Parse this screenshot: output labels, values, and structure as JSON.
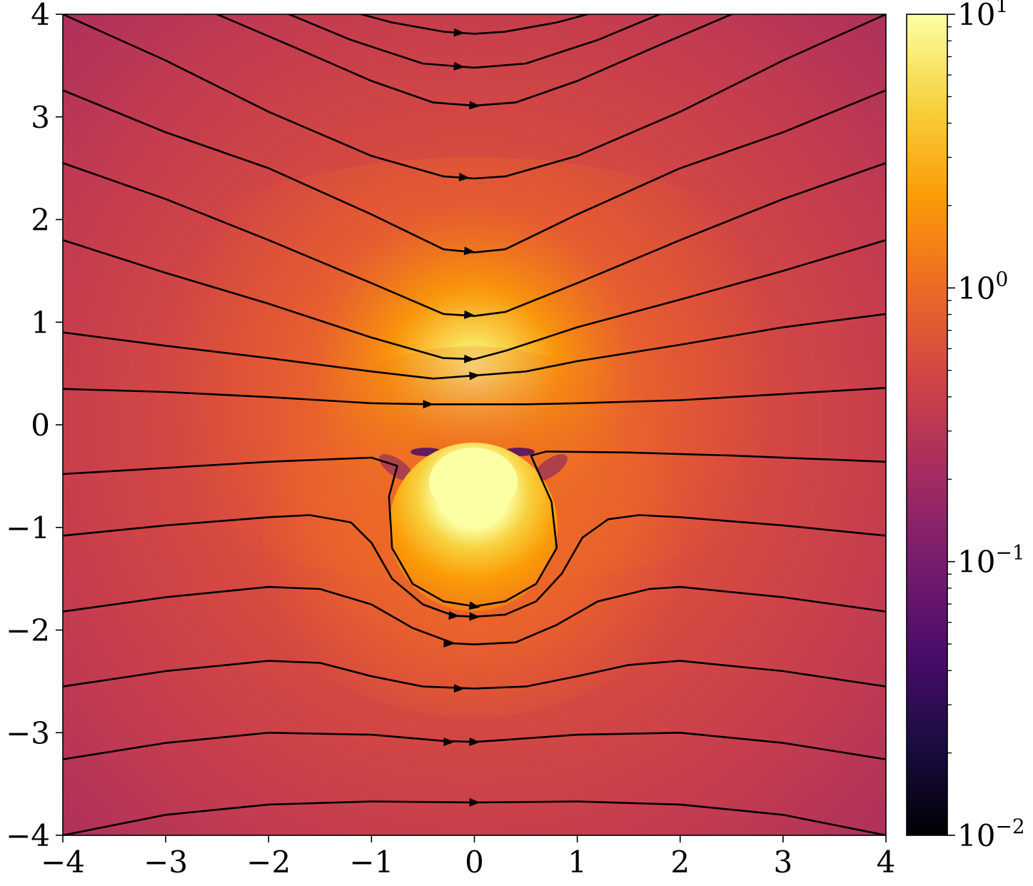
{
  "chart_data": {
    "type": "streamplot",
    "title": "",
    "xlabel": "",
    "ylabel": "",
    "xlim": [
      -4,
      4
    ],
    "ylim": [
      -4,
      4
    ],
    "x_ticks": [
      -4,
      -3,
      -2,
      -1,
      0,
      1,
      2,
      3,
      4
    ],
    "y_ticks": [
      -4,
      -3,
      -2,
      -1,
      0,
      1,
      2,
      3,
      4
    ],
    "x_tick_labels": [
      "−4",
      "−3",
      "−2",
      "−1",
      "0",
      "1",
      "2",
      "3",
      "4"
    ],
    "y_tick_labels": [
      "−4",
      "−3",
      "−2",
      "−1",
      "0",
      "1",
      "2",
      "3",
      "4"
    ],
    "grid": false,
    "background": {
      "quantity": "speed magnitude (log color scale)",
      "colormap": "inferno",
      "sources": [
        {
          "name": "upper-hotspot",
          "x": 0,
          "y": 0.55
        },
        {
          "name": "lower-sphere",
          "x": 0,
          "y": -1.0,
          "radius": 0.8
        }
      ]
    },
    "colorbar": {
      "scale": "log",
      "range": [
        0.01,
        10
      ],
      "tick_values": [
        0.01,
        0.1,
        1,
        10
      ],
      "tick_labels": [
        {
          "base": "10",
          "exp": "−2"
        },
        {
          "base": "10",
          "exp": "−1"
        },
        {
          "base": "10",
          "exp": "0"
        },
        {
          "base": "10",
          "exp": "1"
        }
      ],
      "colors": [
        "#000004",
        "#1b0c41",
        "#4a0c6b",
        "#781c6d",
        "#a52c60",
        "#cf4446",
        "#ed6925",
        "#fb9b06",
        "#f7d13d",
        "#fcffa4"
      ]
    },
    "streamlines": [
      {
        "name": "stream-1",
        "points": [
          [
            -1.1,
            4.0
          ],
          [
            -0.8,
            3.92
          ],
          [
            -0.3,
            3.83
          ],
          [
            0.0,
            3.81
          ],
          [
            0.3,
            3.83
          ],
          [
            0.8,
            3.92
          ],
          [
            1.1,
            4.0
          ]
        ],
        "arrows": [
          [
            -0.15,
            3.82
          ]
        ]
      },
      {
        "name": "stream-2",
        "points": [
          [
            -1.8,
            4.0
          ],
          [
            -1.2,
            3.75
          ],
          [
            -0.5,
            3.52
          ],
          [
            0.0,
            3.48
          ],
          [
            0.5,
            3.52
          ],
          [
            1.2,
            3.75
          ],
          [
            1.8,
            4.0
          ]
        ],
        "arrows": [
          [
            -0.15,
            3.49
          ]
        ]
      },
      {
        "name": "stream-3",
        "points": [
          [
            -2.5,
            4.0
          ],
          [
            -1.8,
            3.7
          ],
          [
            -1.0,
            3.35
          ],
          [
            -0.4,
            3.14
          ],
          [
            0.0,
            3.11
          ],
          [
            0.4,
            3.14
          ],
          [
            1.0,
            3.35
          ],
          [
            1.8,
            3.7
          ],
          [
            2.5,
            4.0
          ]
        ],
        "arrows": [
          [
            0.0,
            3.11
          ]
        ]
      },
      {
        "name": "stream-4",
        "points": [
          [
            -4.0,
            4.0
          ],
          [
            -3.0,
            3.55
          ],
          [
            -2.0,
            3.05
          ],
          [
            -1.0,
            2.62
          ],
          [
            -0.3,
            2.42
          ],
          [
            0.0,
            2.4
          ],
          [
            0.3,
            2.42
          ],
          [
            1.0,
            2.62
          ],
          [
            2.0,
            3.05
          ],
          [
            3.0,
            3.55
          ],
          [
            4.0,
            4.0
          ]
        ],
        "arrows": [
          [
            -0.1,
            2.41
          ]
        ]
      },
      {
        "name": "stream-5",
        "points": [
          [
            -4.0,
            3.26
          ],
          [
            -3.0,
            2.85
          ],
          [
            -2.0,
            2.5
          ],
          [
            -1.0,
            2.05
          ],
          [
            -0.3,
            1.71
          ],
          [
            0.0,
            1.68
          ],
          [
            0.3,
            1.71
          ],
          [
            1.0,
            2.05
          ],
          [
            2.0,
            2.5
          ],
          [
            3.0,
            2.85
          ],
          [
            4.0,
            3.26
          ]
        ],
        "arrows": [
          [
            -0.05,
            1.69
          ]
        ]
      },
      {
        "name": "stream-6",
        "points": [
          [
            -4.0,
            2.55
          ],
          [
            -3.0,
            2.2
          ],
          [
            -2.0,
            1.8
          ],
          [
            -1.0,
            1.38
          ],
          [
            -0.3,
            1.08
          ],
          [
            0.0,
            1.06
          ],
          [
            0.3,
            1.1
          ],
          [
            1.0,
            1.38
          ],
          [
            2.0,
            1.8
          ],
          [
            3.0,
            2.2
          ],
          [
            4.0,
            2.55
          ]
        ],
        "arrows": [
          [
            -0.05,
            1.07
          ]
        ]
      },
      {
        "name": "stream-7",
        "points": [
          [
            -4.0,
            1.8
          ],
          [
            -3.0,
            1.48
          ],
          [
            -2.0,
            1.18
          ],
          [
            -1.0,
            0.85
          ],
          [
            -0.3,
            0.65
          ],
          [
            0.0,
            0.64
          ],
          [
            0.3,
            0.72
          ],
          [
            1.0,
            0.95
          ],
          [
            2.0,
            1.22
          ],
          [
            3.0,
            1.5
          ],
          [
            4.0,
            1.8
          ]
        ],
        "arrows": [
          [
            -0.05,
            0.64
          ]
        ]
      },
      {
        "name": "stream-8",
        "points": [
          [
            -4.0,
            0.9
          ],
          [
            -3.0,
            0.77
          ],
          [
            -2.0,
            0.65
          ],
          [
            -1.0,
            0.52
          ],
          [
            -0.4,
            0.45
          ],
          [
            0.0,
            0.48
          ],
          [
            0.5,
            0.52
          ],
          [
            1.0,
            0.62
          ],
          [
            2.0,
            0.78
          ],
          [
            3.0,
            0.95
          ],
          [
            4.0,
            1.08
          ]
        ],
        "arrows": [
          [
            0.0,
            0.48
          ]
        ]
      },
      {
        "name": "stream-9",
        "points": [
          [
            -4.0,
            0.35
          ],
          [
            -3.0,
            0.32
          ],
          [
            -2.0,
            0.27
          ],
          [
            -1.0,
            0.21
          ],
          [
            -0.4,
            0.2
          ],
          [
            0.0,
            0.2
          ],
          [
            0.5,
            0.2
          ],
          [
            1.0,
            0.21
          ],
          [
            2.0,
            0.24
          ],
          [
            3.0,
            0.3
          ],
          [
            4.0,
            0.36
          ]
        ],
        "arrows": [
          [
            -0.45,
            0.2
          ]
        ]
      },
      {
        "name": "stream-10",
        "points": [
          [
            -4.0,
            -0.48
          ],
          [
            -3.0,
            -0.42
          ],
          [
            -2.0,
            -0.36
          ],
          [
            -1.0,
            -0.32
          ],
          [
            -0.75,
            -0.4
          ],
          [
            -0.83,
            -0.7
          ],
          [
            -0.8,
            -1.2
          ],
          [
            -0.6,
            -1.55
          ],
          [
            -0.3,
            -1.72
          ],
          [
            0.0,
            -1.77
          ],
          [
            0.3,
            -1.72
          ],
          [
            0.6,
            -1.55
          ],
          [
            0.8,
            -1.2
          ],
          [
            0.75,
            -0.75
          ],
          [
            0.55,
            -0.3
          ],
          [
            0.7,
            -0.26
          ],
          [
            1.5,
            -0.27
          ],
          [
            2.5,
            -0.3
          ],
          [
            4.0,
            -0.36
          ]
        ],
        "arrows": [
          [
            0.0,
            -1.77
          ]
        ]
      },
      {
        "name": "stream-11",
        "points": [
          [
            -4.0,
            -1.08
          ],
          [
            -3.0,
            -0.98
          ],
          [
            -2.0,
            -0.9
          ],
          [
            -1.6,
            -0.88
          ],
          [
            -1.2,
            -0.95
          ],
          [
            -1.0,
            -1.15
          ],
          [
            -0.8,
            -1.5
          ],
          [
            -0.5,
            -1.75
          ],
          [
            -0.2,
            -1.86
          ],
          [
            0.0,
            -1.87
          ],
          [
            0.3,
            -1.85
          ],
          [
            0.6,
            -1.72
          ],
          [
            0.85,
            -1.45
          ],
          [
            1.05,
            -1.1
          ],
          [
            1.3,
            -0.92
          ],
          [
            1.6,
            -0.88
          ],
          [
            2.0,
            -0.9
          ],
          [
            3.0,
            -0.98
          ],
          [
            4.0,
            -1.08
          ]
        ],
        "arrows": [
          [
            -0.2,
            -1.86
          ],
          [
            0.0,
            -1.87
          ]
        ]
      },
      {
        "name": "stream-12",
        "points": [
          [
            -4.0,
            -1.82
          ],
          [
            -3.0,
            -1.68
          ],
          [
            -2.0,
            -1.58
          ],
          [
            -1.5,
            -1.6
          ],
          [
            -1.0,
            -1.75
          ],
          [
            -0.6,
            -1.98
          ],
          [
            -0.2,
            -2.13
          ],
          [
            0.0,
            -2.14
          ],
          [
            0.4,
            -2.12
          ],
          [
            0.8,
            -1.95
          ],
          [
            1.2,
            -1.72
          ],
          [
            1.7,
            -1.6
          ],
          [
            2.0,
            -1.58
          ],
          [
            3.0,
            -1.68
          ],
          [
            4.0,
            -1.82
          ]
        ],
        "arrows": [
          [
            -0.25,
            -2.13
          ]
        ]
      },
      {
        "name": "stream-13",
        "points": [
          [
            -4.0,
            -2.55
          ],
          [
            -3.0,
            -2.4
          ],
          [
            -2.0,
            -2.3
          ],
          [
            -1.5,
            -2.32
          ],
          [
            -1.0,
            -2.45
          ],
          [
            -0.5,
            -2.55
          ],
          [
            0.0,
            -2.57
          ],
          [
            0.5,
            -2.55
          ],
          [
            1.0,
            -2.45
          ],
          [
            1.5,
            -2.34
          ],
          [
            2.0,
            -2.3
          ],
          [
            3.0,
            -2.4
          ],
          [
            4.0,
            -2.55
          ]
        ],
        "arrows": [
          [
            -0.15,
            -2.57
          ]
        ]
      },
      {
        "name": "stream-14",
        "points": [
          [
            -4.0,
            -3.26
          ],
          [
            -3.0,
            -3.1
          ],
          [
            -2.0,
            -3.0
          ],
          [
            -1.0,
            -3.02
          ],
          [
            -0.3,
            -3.08
          ],
          [
            0.0,
            -3.09
          ],
          [
            0.3,
            -3.07
          ],
          [
            1.0,
            -3.02
          ],
          [
            2.0,
            -3.0
          ],
          [
            3.0,
            -3.1
          ],
          [
            4.0,
            -3.26
          ]
        ],
        "arrows": [
          [
            -0.25,
            -3.09
          ],
          [
            0.0,
            -3.09
          ]
        ]
      },
      {
        "name": "stream-15",
        "points": [
          [
            -4.0,
            -4.0
          ],
          [
            -3.0,
            -3.8
          ],
          [
            -2.0,
            -3.7
          ],
          [
            -1.0,
            -3.67
          ],
          [
            0.0,
            -3.68
          ],
          [
            1.0,
            -3.67
          ],
          [
            2.0,
            -3.7
          ],
          [
            3.0,
            -3.8
          ],
          [
            4.0,
            -4.0
          ]
        ],
        "arrows": [
          [
            0.0,
            -3.68
          ]
        ]
      }
    ]
  }
}
